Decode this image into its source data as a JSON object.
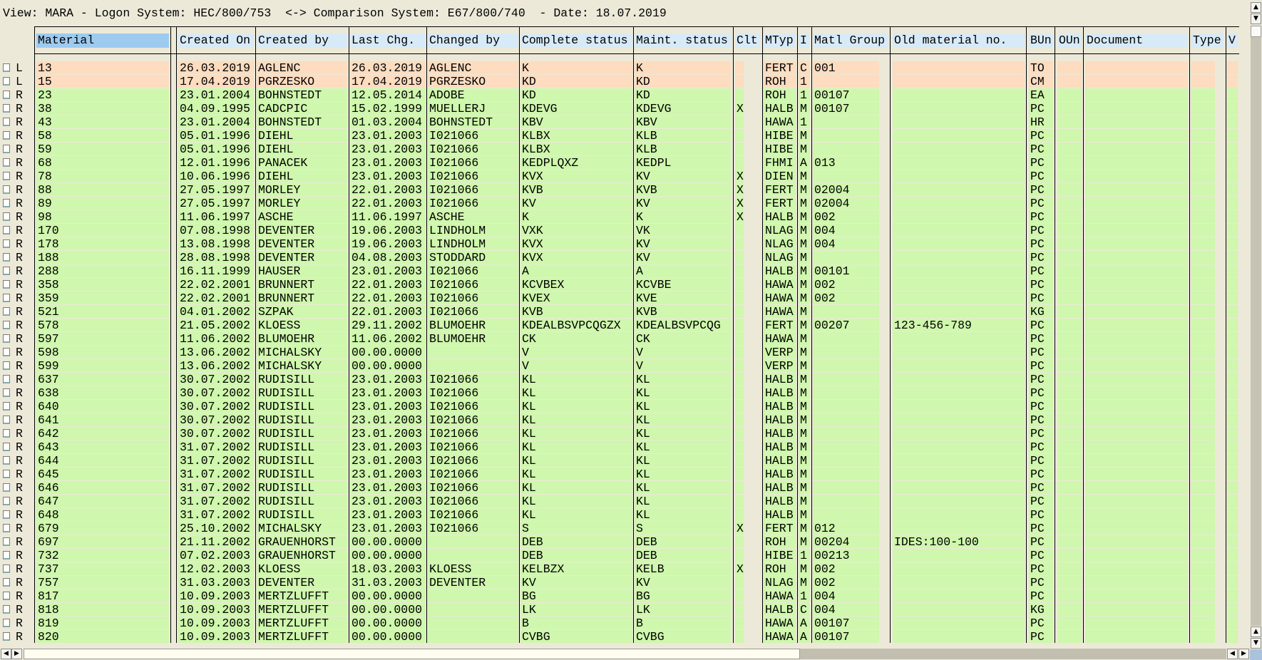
{
  "title": "View: MARA - Logon System: HEC/800/753  <-> Comparison System: E67/800/740  - Date: 18.07.2019",
  "colors": {
    "local_row": "#fddcc0",
    "remote_row": "#cff7ad",
    "header": "#d7eaf7",
    "header_selected": "#9dcbf0",
    "background": "#ece9d8"
  },
  "table": {
    "selected_column": "Material",
    "headers": [
      "Material",
      "Created On",
      "Created by",
      "Last Chg.",
      "Changed by",
      "Complete status",
      "Maint. status",
      "Clt",
      "MTyp",
      "I",
      "Matl Group",
      "Old material no.",
      "BUn",
      "OUn",
      "Document",
      "Type",
      "V"
    ],
    "rows": [
      [
        "L",
        "13",
        "26.03.2019",
        "AGLENC",
        "26.03.2019",
        "AGLENC",
        "K",
        "K",
        "",
        "FERT",
        "C",
        "001",
        "",
        "TO"
      ],
      [
        "L",
        "15",
        "17.04.2019",
        "PGRZESKO",
        "17.04.2019",
        "PGRZESKO",
        "KD",
        "KD",
        "",
        "ROH",
        "1",
        "",
        "",
        "CM"
      ],
      [
        "R",
        "23",
        "23.01.2004",
        "BOHNSTEDT",
        "12.05.2014",
        "ADOBE",
        "KD",
        "KD",
        "",
        "ROH",
        "1",
        "00107",
        "",
        "EA"
      ],
      [
        "R",
        "38",
        "04.09.1995",
        "CADCPIC",
        "15.02.1999",
        "MUELLERJ",
        "KDEVG",
        "KDEVG",
        "X",
        "HALB",
        "M",
        "00107",
        "",
        "PC"
      ],
      [
        "R",
        "43",
        "23.01.2004",
        "BOHNSTEDT",
        "01.03.2004",
        "BOHNSTEDT",
        "KBV",
        "KBV",
        "",
        "HAWA",
        "1",
        "",
        "",
        "HR"
      ],
      [
        "R",
        "58",
        "05.01.1996",
        "DIEHL",
        "23.01.2003",
        "I021066",
        "KLBX",
        "KLB",
        "",
        "HIBE",
        "M",
        "",
        "",
        "PC"
      ],
      [
        "R",
        "59",
        "05.01.1996",
        "DIEHL",
        "23.01.2003",
        "I021066",
        "KLBX",
        "KLB",
        "",
        "HIBE",
        "M",
        "",
        "",
        "PC"
      ],
      [
        "R",
        "68",
        "12.01.1996",
        "PANACEK",
        "23.01.2003",
        "I021066",
        "KEDPLQXZ",
        "KEDPL",
        "",
        "FHMI",
        "A",
        "013",
        "",
        "PC"
      ],
      [
        "R",
        "78",
        "10.06.1996",
        "DIEHL",
        "23.01.2003",
        "I021066",
        "KVX",
        "KV",
        "X",
        "DIEN",
        "M",
        "",
        "",
        "PC"
      ],
      [
        "R",
        "88",
        "27.05.1997",
        "MORLEY",
        "22.01.2003",
        "I021066",
        "KVB",
        "KVB",
        "X",
        "FERT",
        "M",
        "02004",
        "",
        "PC"
      ],
      [
        "R",
        "89",
        "27.05.1997",
        "MORLEY",
        "22.01.2003",
        "I021066",
        "KV",
        "KV",
        "X",
        "FERT",
        "M",
        "02004",
        "",
        "PC"
      ],
      [
        "R",
        "98",
        "11.06.1997",
        "ASCHE",
        "11.06.1997",
        "ASCHE",
        "K",
        "K",
        "X",
        "HALB",
        "M",
        "002",
        "",
        "PC"
      ],
      [
        "R",
        "170",
        "07.08.1998",
        "DEVENTER",
        "19.06.2003",
        "LINDHOLM",
        "VXK",
        "VK",
        "",
        "NLAG",
        "M",
        "004",
        "",
        "PC"
      ],
      [
        "R",
        "178",
        "13.08.1998",
        "DEVENTER",
        "19.06.2003",
        "LINDHOLM",
        "KVX",
        "KV",
        "",
        "NLAG",
        "M",
        "004",
        "",
        "PC"
      ],
      [
        "R",
        "188",
        "28.08.1998",
        "DEVENTER",
        "04.08.2003",
        "STODDARD",
        "KVX",
        "KV",
        "",
        "NLAG",
        "M",
        "",
        "",
        "PC"
      ],
      [
        "R",
        "288",
        "16.11.1999",
        "HAUSER",
        "23.01.2003",
        "I021066",
        "A",
        "A",
        "",
        "HALB",
        "M",
        "00101",
        "",
        "PC"
      ],
      [
        "R",
        "358",
        "22.02.2001",
        "BRUNNERT",
        "22.01.2003",
        "I021066",
        "KCVBEX",
        "KCVBE",
        "",
        "HAWA",
        "M",
        "002",
        "",
        "PC"
      ],
      [
        "R",
        "359",
        "22.02.2001",
        "BRUNNERT",
        "22.01.2003",
        "I021066",
        "KVEX",
        "KVE",
        "",
        "HAWA",
        "M",
        "002",
        "",
        "PC"
      ],
      [
        "R",
        "521",
        "04.01.2002",
        "SZPAK",
        "22.01.2003",
        "I021066",
        "KVB",
        "KVB",
        "",
        "HAWA",
        "M",
        "",
        "",
        "KG"
      ],
      [
        "R",
        "578",
        "21.05.2002",
        "KLOESS",
        "29.11.2002",
        "BLUMOEHR",
        "KDEALBSVPCQGZX",
        "KDEALBSVPCQG",
        "",
        "FERT",
        "M",
        "00207",
        "123-456-789",
        "PC"
      ],
      [
        "R",
        "597",
        "11.06.2002",
        "BLUMOEHR",
        "11.06.2002",
        "BLUMOEHR",
        "CK",
        "CK",
        "",
        "HAWA",
        "M",
        "",
        "",
        "PC"
      ],
      [
        "R",
        "598",
        "13.06.2002",
        "MICHALSKY",
        "00.00.0000",
        "",
        "V",
        "V",
        "",
        "VERP",
        "M",
        "",
        "",
        "PC"
      ],
      [
        "R",
        "599",
        "13.06.2002",
        "MICHALSKY",
        "00.00.0000",
        "",
        "V",
        "V",
        "",
        "VERP",
        "M",
        "",
        "",
        "PC"
      ],
      [
        "R",
        "637",
        "30.07.2002",
        "RUDISILL",
        "23.01.2003",
        "I021066",
        "KL",
        "KL",
        "",
        "HALB",
        "M",
        "",
        "",
        "PC"
      ],
      [
        "R",
        "638",
        "30.07.2002",
        "RUDISILL",
        "23.01.2003",
        "I021066",
        "KL",
        "KL",
        "",
        "HALB",
        "M",
        "",
        "",
        "PC"
      ],
      [
        "R",
        "640",
        "30.07.2002",
        "RUDISILL",
        "23.01.2003",
        "I021066",
        "KL",
        "KL",
        "",
        "HALB",
        "M",
        "",
        "",
        "PC"
      ],
      [
        "R",
        "641",
        "30.07.2002",
        "RUDISILL",
        "23.01.2003",
        "I021066",
        "KL",
        "KL",
        "",
        "HALB",
        "M",
        "",
        "",
        "PC"
      ],
      [
        "R",
        "642",
        "30.07.2002",
        "RUDISILL",
        "23.01.2003",
        "I021066",
        "KL",
        "KL",
        "",
        "HALB",
        "M",
        "",
        "",
        "PC"
      ],
      [
        "R",
        "643",
        "31.07.2002",
        "RUDISILL",
        "23.01.2003",
        "I021066",
        "KL",
        "KL",
        "",
        "HALB",
        "M",
        "",
        "",
        "PC"
      ],
      [
        "R",
        "644",
        "31.07.2002",
        "RUDISILL",
        "23.01.2003",
        "I021066",
        "KL",
        "KL",
        "",
        "HALB",
        "M",
        "",
        "",
        "PC"
      ],
      [
        "R",
        "645",
        "31.07.2002",
        "RUDISILL",
        "23.01.2003",
        "I021066",
        "KL",
        "KL",
        "",
        "HALB",
        "M",
        "",
        "",
        "PC"
      ],
      [
        "R",
        "646",
        "31.07.2002",
        "RUDISILL",
        "23.01.2003",
        "I021066",
        "KL",
        "KL",
        "",
        "HALB",
        "M",
        "",
        "",
        "PC"
      ],
      [
        "R",
        "647",
        "31.07.2002",
        "RUDISILL",
        "23.01.2003",
        "I021066",
        "KL",
        "KL",
        "",
        "HALB",
        "M",
        "",
        "",
        "PC"
      ],
      [
        "R",
        "648",
        "31.07.2002",
        "RUDISILL",
        "23.01.2003",
        "I021066",
        "KL",
        "KL",
        "",
        "HALB",
        "M",
        "",
        "",
        "PC"
      ],
      [
        "R",
        "679",
        "25.10.2002",
        "MICHALSKY",
        "23.01.2003",
        "I021066",
        "S",
        "S",
        "X",
        "FERT",
        "M",
        "012",
        "",
        "PC"
      ],
      [
        "R",
        "697",
        "21.11.2002",
        "GRAUENHORST",
        "00.00.0000",
        "",
        "DEB",
        "DEB",
        "",
        "ROH",
        "M",
        "00204",
        "IDES:100-100",
        "PC"
      ],
      [
        "R",
        "732",
        "07.02.2003",
        "GRAUENHORST",
        "00.00.0000",
        "",
        "DEB",
        "DEB",
        "",
        "HIBE",
        "1",
        "00213",
        "",
        "PC"
      ],
      [
        "R",
        "737",
        "12.02.2003",
        "KLOESS",
        "18.03.2003",
        "KLOESS",
        "KELBZX",
        "KELB",
        "X",
        "ROH",
        "M",
        "002",
        "",
        "PC"
      ],
      [
        "R",
        "757",
        "31.03.2003",
        "DEVENTER",
        "31.03.2003",
        "DEVENTER",
        "KV",
        "KV",
        "",
        "NLAG",
        "M",
        "002",
        "",
        "PC"
      ],
      [
        "R",
        "817",
        "10.09.2003",
        "MERTZLUFFT",
        "00.00.0000",
        "",
        "BG",
        "BG",
        "",
        "HAWA",
        "1",
        "004",
        "",
        "PC"
      ],
      [
        "R",
        "818",
        "10.09.2003",
        "MERTZLUFFT",
        "00.00.0000",
        "",
        "LK",
        "LK",
        "",
        "HALB",
        "C",
        "004",
        "",
        "KG"
      ],
      [
        "R",
        "819",
        "10.09.2003",
        "MERTZLUFFT",
        "00.00.0000",
        "",
        "B",
        "B",
        "",
        "HAWA",
        "A",
        "00107",
        "",
        "PC"
      ],
      [
        "R",
        "820",
        "10.09.2003",
        "MERTZLUFFT",
        "00.00.0000",
        "",
        "CVBG",
        "CVBG",
        "",
        "HAWA",
        "A",
        "00107",
        "",
        "PC"
      ]
    ]
  },
  "scrollbars": {
    "up_icon": "▲",
    "down_icon": "▼",
    "left_icon": "◀",
    "right_icon": "▶"
  }
}
